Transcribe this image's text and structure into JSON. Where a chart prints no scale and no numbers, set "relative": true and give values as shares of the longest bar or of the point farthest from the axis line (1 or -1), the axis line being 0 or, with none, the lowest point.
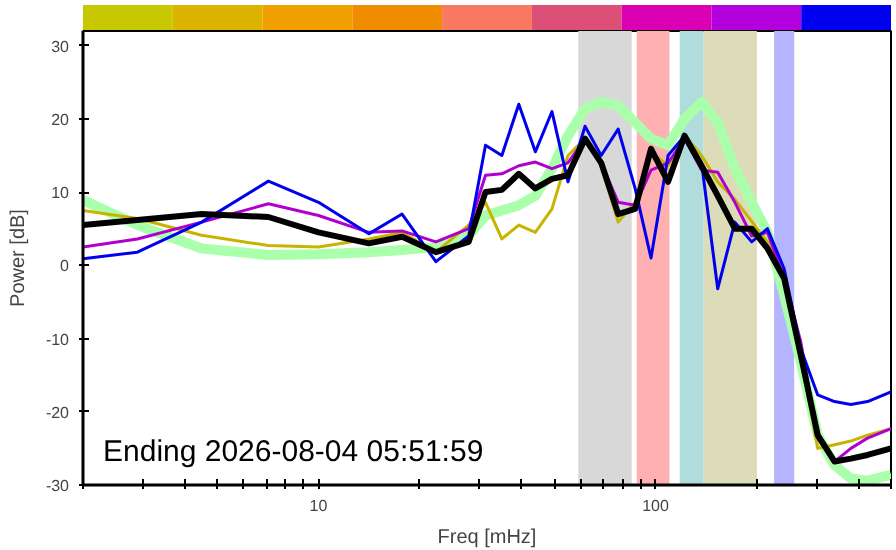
{
  "chart_data": [
    {
      "type": "bar",
      "relative": true,
      "categories": [
        null,
        null,
        null,
        null,
        null,
        null,
        null,
        null,
        null
      ],
      "values": [
        1,
        1,
        1,
        1,
        1,
        1,
        1,
        1,
        1
      ],
      "colors": [
        "#c8c800",
        "#dcb400",
        "#f0a000",
        "#f08c00",
        "#f87860",
        "#dc5078",
        "#dc00b4",
        "#b400dc",
        "#0000f0"
      ]
    },
    {
      "type": "line",
      "xlabel": "Freq [mHz]",
      "ylabel": "Power [dB]",
      "log": "x",
      "xlim": [
        2,
        500
      ],
      "ylim": [
        -30,
        32
      ],
      "xticks": [
        {
          "value": 2,
          "label": null
        },
        {
          "value": 3,
          "label": null
        },
        {
          "value": 4,
          "label": null
        },
        {
          "value": 5,
          "label": null
        },
        {
          "value": 6,
          "label": null
        },
        {
          "value": 7,
          "label": null
        },
        {
          "value": 8,
          "label": null
        },
        {
          "value": 9,
          "label": null
        },
        10,
        {
          "value": 20,
          "label": null
        },
        {
          "value": 30,
          "label": null
        },
        {
          "value": 40,
          "label": null
        },
        {
          "value": 50,
          "label": null
        },
        {
          "value": 60,
          "label": null
        },
        {
          "value": 70,
          "label": null
        },
        {
          "value": 80,
          "label": null
        },
        {
          "value": 90,
          "label": null
        },
        100,
        {
          "value": 200,
          "label": null
        },
        {
          "value": 300,
          "label": null
        },
        {
          "value": 400,
          "label": null
        },
        {
          "value": 500,
          "label": null
        }
      ],
      "yticks": [
        -30,
        -20,
        -10,
        0,
        10,
        20,
        30
      ],
      "x": [
        2,
        2.9,
        4.5,
        7.1,
        10,
        14.1,
        17.7,
        22.3,
        27.9,
        31.3,
        35,
        39.3,
        44,
        49.3,
        55,
        61.8,
        69,
        77.5,
        87,
        97,
        109,
        122,
        137,
        153,
        172,
        193,
        215,
        241,
        270,
        303,
        340,
        380,
        426,
        500
      ],
      "bands": [
        {
          "axis": "x",
          "from": 59,
          "to": 85,
          "color": "#d8d8d8"
        },
        {
          "axis": "x",
          "from": 88,
          "to": 110,
          "color": "#ffb0b0"
        },
        {
          "axis": "x",
          "from": 118,
          "to": 139,
          "color": "#b0dcdc"
        },
        {
          "axis": "x",
          "from": 139,
          "to": 200,
          "color": "#dcdcb8"
        },
        {
          "axis": "x",
          "from": 225,
          "to": 258,
          "color": "#b4b4ff"
        }
      ],
      "series": [
        {
          "color": "#aaffaa",
          "values": [
            8.9,
            5.5,
            2.3,
            1.4,
            1.5,
            1.8,
            2.1,
            2.5,
            4.1,
            6.8,
            7.5,
            8.2,
            9.5,
            13.2,
            17.7,
            21.4,
            22.3,
            21.8,
            19.5,
            17.3,
            16.4,
            20,
            22.3,
            19.5,
            13.2,
            8.6,
            4.5,
            -4.1,
            -13.2,
            -23.2,
            -27.3,
            -29.1,
            -29.4,
            -28.6
          ]
        },
        {
          "color": "#c8b400",
          "values": [
            7.5,
            6.4,
            4.1,
            2.7,
            2.5,
            3.6,
            4.5,
            1.8,
            5.5,
            8.6,
            3.6,
            5.5,
            4.5,
            7.7,
            15,
            17.3,
            13.6,
            5.9,
            8.6,
            15.5,
            13.6,
            17.7,
            15,
            11.4,
            9,
            6,
            3.2,
            -2.3,
            -12.3,
            -25,
            -24.5,
            -24,
            -23.2,
            -22.3
          ]
        },
        {
          "color": "#b000d0",
          "values": [
            2.5,
            3.6,
            5.9,
            8.4,
            6.8,
            4.5,
            4.7,
            3.2,
            5,
            12.3,
            12.5,
            13.6,
            14.1,
            13.2,
            14,
            17.3,
            14,
            8.6,
            8.2,
            13,
            14,
            17.3,
            13,
            12.7,
            8.6,
            4,
            4.5,
            -1.8,
            -10.5,
            -23.6,
            -26.8,
            -25,
            -23.6,
            -22.3
          ]
        },
        {
          "color": "#0000ee",
          "values": [
            0.9,
            1.8,
            5.9,
            11.5,
            8.6,
            4.3,
            7,
            0.5,
            4,
            16.4,
            15,
            22,
            15.5,
            21,
            11.4,
            19,
            15,
            18.6,
            10.5,
            1,
            15,
            17.7,
            14,
            -3.2,
            5.9,
            3.2,
            5,
            -0.5,
            -11.4,
            -17.7,
            -18.6,
            -19,
            -18.6,
            -17.3
          ]
        },
        {
          "color": "#000000",
          "values": [
            5.5,
            6.2,
            7,
            6.6,
            4.5,
            3,
            3.9,
            1.8,
            3.2,
            10,
            10.3,
            12.5,
            10.5,
            11.8,
            12.3,
            17.3,
            14,
            7,
            7.7,
            15.9,
            11.4,
            17.7,
            13.6,
            9.5,
            5,
            5,
            2.3,
            -1.8,
            -12.3,
            -23.2,
            -26.8,
            -26.4,
            -25.9,
            -25
          ]
        }
      ],
      "annotations": [
        "Ending 2026-08-04 05:51:59"
      ]
    }
  ]
}
